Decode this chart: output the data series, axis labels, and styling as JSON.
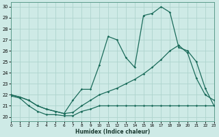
{
  "xlabel": "Humidex (Indice chaleur)",
  "background_color": "#ceeae6",
  "grid_color": "#aed4ce",
  "line_color": "#1a6b5a",
  "x_ticks": [
    0,
    1,
    2,
    3,
    4,
    5,
    6,
    7,
    8,
    9,
    10,
    11,
    12,
    13,
    14,
    15,
    16,
    17,
    18,
    19,
    20,
    21,
    22,
    23
  ],
  "y_ticks": [
    20,
    21,
    22,
    23,
    24,
    25,
    26,
    27,
    28,
    29,
    30
  ],
  "xlim": [
    0,
    23
  ],
  "ylim": [
    19.6,
    30.4
  ],
  "series1_y": [
    21.9,
    21.7,
    21.0,
    20.5,
    20.2,
    20.2,
    20.1,
    20.1,
    20.5,
    20.7,
    21.0,
    21.0,
    21.0,
    21.0,
    21.0,
    21.0,
    21.0,
    21.0,
    21.0,
    21.0,
    21.0,
    21.0,
    21.0,
    21.0
  ],
  "series2_y": [
    22.0,
    21.8,
    21.5,
    21.0,
    20.7,
    20.5,
    20.3,
    20.4,
    21.0,
    21.5,
    22.0,
    22.3,
    22.6,
    23.0,
    23.4,
    23.9,
    24.5,
    25.2,
    26.0,
    26.5,
    25.8,
    23.5,
    22.0,
    21.5
  ],
  "series3_y": [
    22.0,
    21.8,
    21.5,
    21.0,
    20.7,
    20.5,
    20.3,
    21.5,
    22.5,
    22.5,
    24.7,
    27.3,
    27.0,
    25.4,
    24.5,
    29.2,
    29.4,
    30.0,
    29.5,
    26.3,
    26.0,
    25.0,
    22.6,
    21.0
  ]
}
